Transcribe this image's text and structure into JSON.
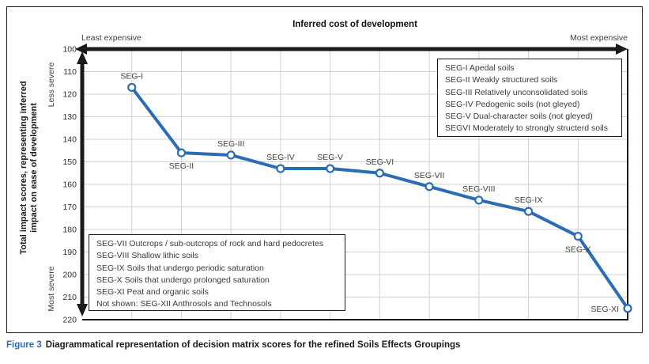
{
  "colors": {
    "line": "#2a6db5",
    "marker_fill": "#ffffff",
    "grid": "#d2d2d2",
    "axis": "#1a1a1a",
    "tick_text": "#2e2e2e",
    "label_text": "#3f3f3f",
    "figure_label_blue": "#2f6eb6"
  },
  "chart_data": {
    "type": "line",
    "title": "Inferred cost of development",
    "categories": [
      "SEG-I",
      "SEG-II",
      "SEG-III",
      "SEG-IV",
      "SEG-V",
      "SEG-VI",
      "SEG-VII",
      "SEG-VIII",
      "SEG-IX",
      "SEG-X",
      "SEG-XI"
    ],
    "values": [
      117,
      146,
      147,
      153,
      153,
      155,
      161,
      167,
      172,
      183,
      215
    ],
    "ylim": [
      100,
      220
    ],
    "yticks": [
      100,
      110,
      120,
      130,
      140,
      150,
      160,
      170,
      180,
      190,
      200,
      210,
      220
    ],
    "y_axis_inverted": true,
    "grid": true,
    "marker": "open-circle",
    "x_endpoint_labels": [
      "Least expensive",
      "Most expensive"
    ],
    "ylabel_lines": [
      "Total impact scores, representing inferred",
      "impact on ease of development"
    ],
    "y_top_annotation": "Less severe",
    "y_bottom_annotation": "Most severe",
    "label_positions": [
      "above",
      "below",
      "above",
      "above",
      "above",
      "above",
      "above",
      "above",
      "above",
      "below",
      "left"
    ],
    "legends": [
      {
        "position": "top-right",
        "items": [
          "SEG-I Apedal soils",
          "SEG-II Weakly structured soils",
          "SEG-III Relatively unconsolidated soils",
          "SEG-IV Pedogenic soils (not gleyed)",
          "SEG-V Dual-character soils (not gleyed)",
          "SEGVI Moderately to strongly structerd soils"
        ]
      },
      {
        "position": "bottom-left",
        "items": [
          "SEG-VII Outcrops / sub-outcrops of rock and hard pedocretes",
          "SEG-VIII Shallow lithic soils",
          "SEG-IX Soils that undergo periodic saturation",
          "SEG-X Soils that undergo prolonged saturation",
          "SEG-XI Peat and organic soils",
          "Not shown: SEG-XII Anthrosols and Technosols"
        ]
      }
    ]
  },
  "caption": {
    "label": "Figure 3",
    "text": "Diagrammatical representation of decision matrix scores for the refined Soils Effects Groupings"
  }
}
